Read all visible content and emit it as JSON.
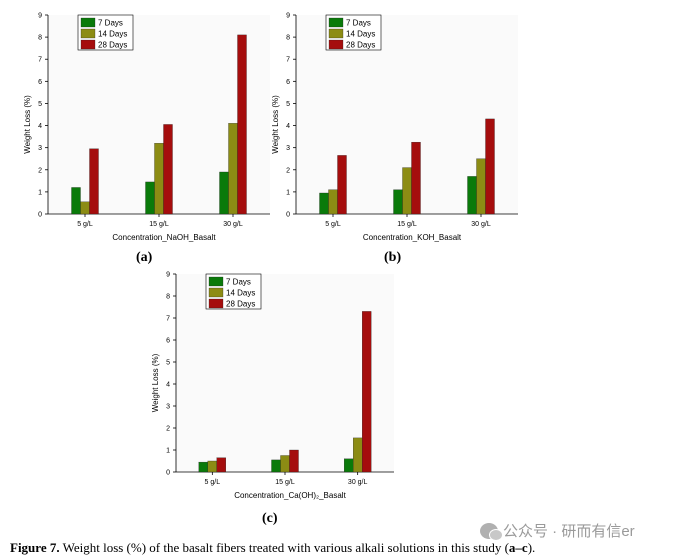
{
  "chart_data": [
    {
      "id": "a",
      "type": "bar",
      "categories": [
        "5 g/L",
        "15 g/L",
        "30 g/L"
      ],
      "series": [
        {
          "name": "7 Days",
          "color": "#0a7a0a",
          "values": [
            1.2,
            1.45,
            1.9
          ]
        },
        {
          "name": "14 Days",
          "color": "#8c8c14",
          "values": [
            0.55,
            3.2,
            4.1
          ]
        },
        {
          "name": "28 Days",
          "color": "#a50d0d",
          "values": [
            2.95,
            4.05,
            8.1
          ]
        }
      ],
      "xlabel": "Concentration_NaOH_Basalt",
      "ylabel": "Weight Loss (%)",
      "ylim": [
        0,
        9
      ],
      "yticks": [
        "0",
        "1",
        "2",
        "3",
        "4",
        "5",
        "6",
        "7",
        "8",
        "9"
      ],
      "legend": "top-left",
      "panel_label": "(a)"
    },
    {
      "id": "b",
      "type": "bar",
      "categories": [
        "5 g/L",
        "15 g/L",
        "30 g/L"
      ],
      "series": [
        {
          "name": "7 Days",
          "color": "#0a7a0a",
          "values": [
            0.95,
            1.1,
            1.7
          ]
        },
        {
          "name": "14 Days",
          "color": "#8c8c14",
          "values": [
            1.1,
            2.1,
            2.5
          ]
        },
        {
          "name": "28 Days",
          "color": "#a50d0d",
          "values": [
            2.65,
            3.25,
            4.3
          ]
        }
      ],
      "xlabel": "Concentration_KOH_Basalt",
      "ylabel": "Weight Loss (%)",
      "ylim": [
        0,
        9
      ],
      "yticks": [
        "0",
        "1",
        "2",
        "3",
        "4",
        "5",
        "6",
        "7",
        "8",
        "9"
      ],
      "legend": "top-left",
      "panel_label": "(b)"
    },
    {
      "id": "c",
      "type": "bar",
      "categories": [
        "5 g/L",
        "15 g/L",
        "30 g/L"
      ],
      "series": [
        {
          "name": "7 Days",
          "color": "#0a7a0a",
          "values": [
            0.45,
            0.55,
            0.6
          ]
        },
        {
          "name": "14 Days",
          "color": "#8c8c14",
          "values": [
            0.5,
            0.75,
            1.55
          ]
        },
        {
          "name": "28 Days",
          "color": "#a50d0d",
          "values": [
            0.65,
            1.0,
            7.3
          ]
        }
      ],
      "xlabel": "Concentration_Ca(OH)₂_Basalt",
      "ylabel": "Weight Loss (%)",
      "ylim": [
        0,
        9
      ],
      "yticks": [
        "0",
        "1",
        "2",
        "3",
        "4",
        "5",
        "6",
        "7",
        "8",
        "9"
      ],
      "legend": "top-left",
      "panel_label": "(c)"
    }
  ],
  "caption": {
    "label": "Figure 7.",
    "text": " Weight loss (%) of the basalt fibers treated with various alkali solutions in this study (",
    "range": "a–c",
    "end": ")."
  },
  "watermark": {
    "text": "公众号 · 研而有信er"
  }
}
